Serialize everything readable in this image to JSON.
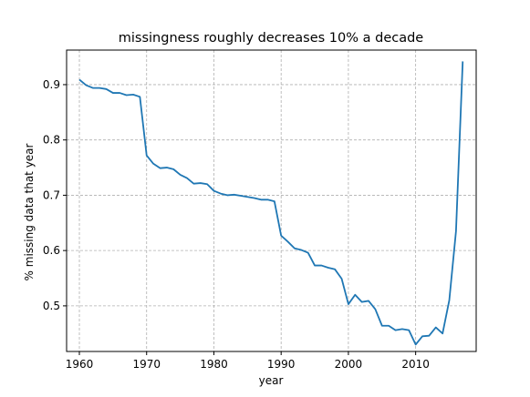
{
  "chart_data": {
    "type": "line",
    "title": "missingness roughly decreases 10% a decade",
    "xlabel": "year",
    "ylabel": "% missing data that year",
    "xlim": [
      1958.1,
      2019.0
    ],
    "ylim": [
      0.4175,
      0.9625
    ],
    "xticks": [
      1960,
      1970,
      1980,
      1990,
      2000,
      2010
    ],
    "yticks": [
      0.5,
      0.6,
      0.7,
      0.8,
      0.9
    ],
    "ytick_labels": [
      "0.5",
      "0.6",
      "0.7",
      "0.8",
      "0.9"
    ],
    "grid": true,
    "series": [
      {
        "color": "#1f77b4",
        "x": [
          1960,
          1961,
          1962,
          1963,
          1964,
          1965,
          1966,
          1967,
          1968,
          1969,
          1970,
          1971,
          1972,
          1973,
          1974,
          1975,
          1976,
          1977,
          1978,
          1979,
          1980,
          1981,
          1982,
          1983,
          1984,
          1985,
          1986,
          1987,
          1988,
          1989,
          1990,
          1991,
          1992,
          1993,
          1994,
          1995,
          1996,
          1997,
          1998,
          1999,
          2000,
          2001,
          2002,
          2003,
          2004,
          2005,
          2006,
          2007,
          2008,
          2009,
          2010,
          2011,
          2012,
          2013,
          2014,
          2015,
          2016,
          2017
        ],
        "values": [
          0.909,
          0.899,
          0.894,
          0.894,
          0.892,
          0.885,
          0.885,
          0.881,
          0.882,
          0.878,
          0.772,
          0.757,
          0.749,
          0.75,
          0.747,
          0.737,
          0.731,
          0.721,
          0.722,
          0.72,
          0.708,
          0.703,
          0.7,
          0.701,
          0.699,
          0.697,
          0.695,
          0.692,
          0.692,
          0.689,
          0.627,
          0.616,
          0.604,
          0.601,
          0.596,
          0.573,
          0.573,
          0.569,
          0.566,
          0.549,
          0.503,
          0.52,
          0.507,
          0.509,
          0.494,
          0.464,
          0.464,
          0.456,
          0.458,
          0.456,
          0.43,
          0.445,
          0.446,
          0.461,
          0.45,
          0.51,
          0.635,
          0.942
        ]
      }
    ]
  }
}
